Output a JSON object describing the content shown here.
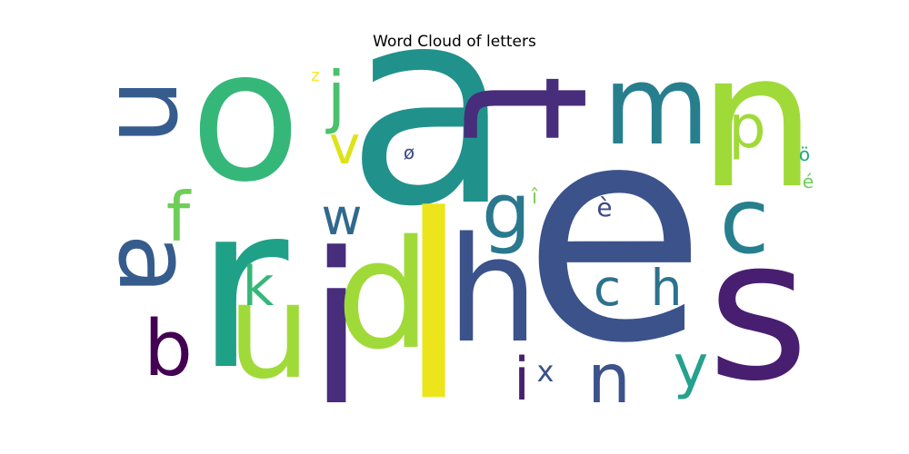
{
  "chart_data": {
    "type": "wordcloud",
    "title": "Word Cloud of letters",
    "background": "#ffffff",
    "colormap": "viridis",
    "words": [
      {
        "text": "a",
        "color": "#21918c",
        "orientation": "horizontal"
      },
      {
        "text": "e",
        "color": "#3b528b",
        "orientation": "horizontal"
      },
      {
        "text": "l",
        "color": "#ece51b",
        "orientation": "horizontal"
      },
      {
        "text": "r",
        "color": "#1fa187",
        "orientation": "horizontal"
      },
      {
        "text": "o",
        "color": "#35b779",
        "orientation": "horizontal"
      },
      {
        "text": "i",
        "color": "#472d7b",
        "orientation": "horizontal"
      },
      {
        "text": "s",
        "color": "#481f70",
        "orientation": "horizontal"
      },
      {
        "text": "n",
        "color": "#a0da39",
        "orientation": "horizontal"
      },
      {
        "text": "t",
        "color": "#472d7b",
        "orientation": "vertical"
      },
      {
        "text": "d",
        "color": "#a0da39",
        "orientation": "horizontal"
      },
      {
        "text": "h",
        "color": "#3b528b",
        "orientation": "horizontal"
      },
      {
        "text": "u",
        "color": "#a0da39",
        "orientation": "horizontal"
      },
      {
        "text": "m",
        "color": "#277f8e",
        "orientation": "horizontal"
      },
      {
        "text": "n",
        "color": "#365c8d",
        "orientation": "vertical"
      },
      {
        "text": "a",
        "color": "#365c8d",
        "orientation": "vertical"
      },
      {
        "text": "c",
        "color": "#277f8e",
        "orientation": "horizontal"
      },
      {
        "text": "b",
        "color": "#440154",
        "orientation": "horizontal"
      },
      {
        "text": "g",
        "color": "#2a788e",
        "orientation": "horizontal"
      },
      {
        "text": "f",
        "color": "#6ece58",
        "orientation": "horizontal"
      },
      {
        "text": "p",
        "color": "#a0da39",
        "orientation": "horizontal"
      },
      {
        "text": "j",
        "color": "#4ac16d",
        "orientation": "horizontal"
      },
      {
        "text": "v",
        "color": "#dde318",
        "orientation": "horizontal"
      },
      {
        "text": "w",
        "color": "#31688e",
        "orientation": "horizontal"
      },
      {
        "text": "k",
        "color": "#35b779",
        "orientation": "horizontal"
      },
      {
        "text": "c",
        "color": "#2c728e",
        "orientation": "horizontal"
      },
      {
        "text": "h",
        "color": "#2c728e",
        "orientation": "horizontal"
      },
      {
        "text": "n",
        "color": "#3b528b",
        "orientation": "horizontal"
      },
      {
        "text": "y",
        "color": "#25a18e",
        "orientation": "horizontal"
      },
      {
        "text": "i",
        "color": "#481f70",
        "orientation": "horizontal"
      },
      {
        "text": "x",
        "color": "#3b528b",
        "orientation": "horizontal"
      },
      {
        "text": "è",
        "color": "#3e4989",
        "orientation": "horizontal"
      },
      {
        "text": "ø",
        "color": "#3e4989",
        "orientation": "horizontal"
      },
      {
        "text": "î",
        "color": "#7ad151",
        "orientation": "horizontal"
      },
      {
        "text": "ö",
        "color": "#22a884",
        "orientation": "horizontal"
      },
      {
        "text": "é",
        "color": "#6ece58",
        "orientation": "horizontal"
      },
      {
        "text": "z",
        "color": "#fde725",
        "orientation": "horizontal"
      }
    ]
  }
}
